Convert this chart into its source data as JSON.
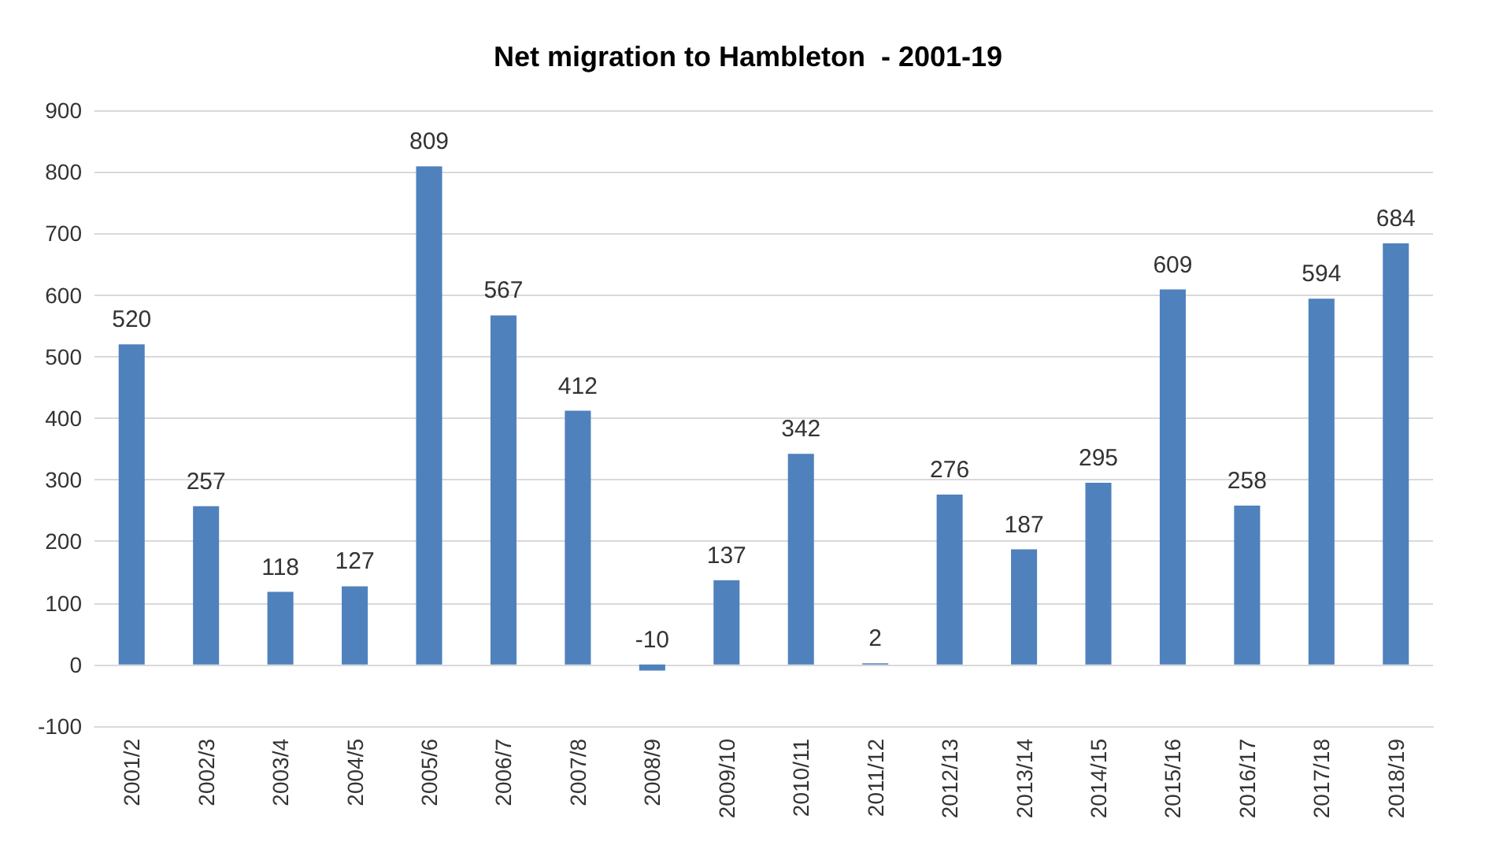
{
  "chart_data": {
    "type": "bar",
    "title": "Net migration to Hambleton  - 2001-19",
    "categories": [
      "2001/2",
      "2002/3",
      "2003/4",
      "2004/5",
      "2005/6",
      "2006/7",
      "2007/8",
      "2008/9",
      "2009/10",
      "2010/11",
      "2011/12",
      "2012/13",
      "2013/14",
      "2014/15",
      "2015/16",
      "2016/17",
      "2017/18",
      "2018/19"
    ],
    "values": [
      520,
      257,
      118,
      127,
      809,
      567,
      412,
      -10,
      137,
      342,
      2,
      276,
      187,
      295,
      609,
      258,
      594,
      684
    ],
    "color": "#4f81bd",
    "ylim": [
      -100,
      900
    ],
    "yticks": [
      -100,
      0,
      100,
      200,
      300,
      400,
      500,
      600,
      700,
      800,
      900
    ],
    "grid": "y",
    "data_labels": true
  }
}
